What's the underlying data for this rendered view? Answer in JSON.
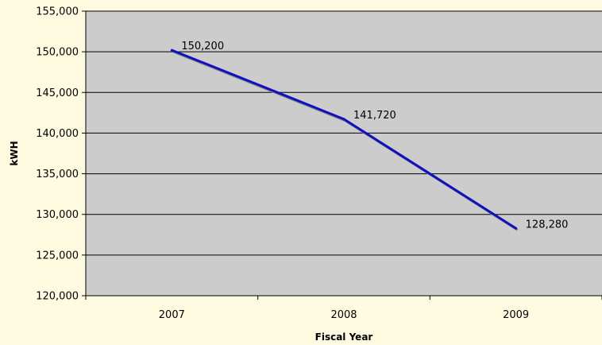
{
  "chart_data": {
    "type": "line",
    "title": "",
    "xlabel": "Fiscal Year",
    "ylabel": "kWH",
    "categories": [
      "2007",
      "2008",
      "2009"
    ],
    "series": [
      {
        "values": [
          150200,
          141720,
          128280
        ],
        "data_labels": [
          "150,200",
          "141,720",
          "128,280"
        ],
        "color": "#1010c0"
      }
    ],
    "ylim": [
      120000,
      155000
    ],
    "yticks": [
      120000,
      125000,
      130000,
      135000,
      140000,
      145000,
      150000,
      155000
    ],
    "ytick_labels": [
      "120,000",
      "125,000",
      "130,000",
      "135,000",
      "140,000",
      "145,000",
      "150,000",
      "155,000"
    ],
    "grid": true,
    "legend": "none",
    "colors": {
      "background": "#fffbe0",
      "plot_area": "#cccccc",
      "gridline": "#000000",
      "line": "#1010c0",
      "shadow": "#8a8a8a"
    }
  }
}
